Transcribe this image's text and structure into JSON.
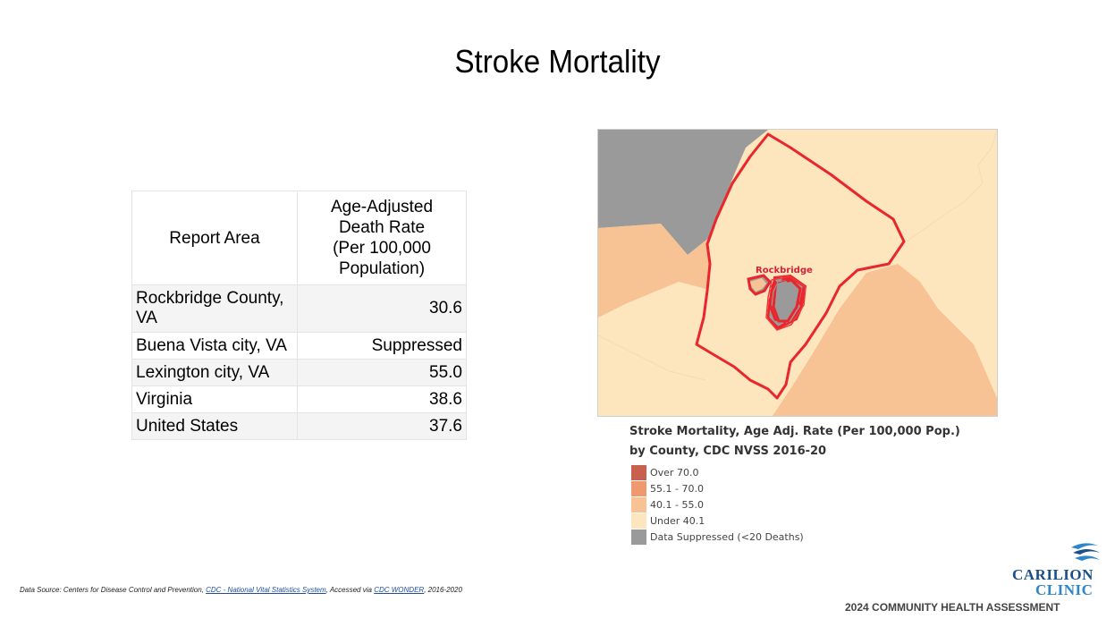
{
  "title": "Stroke Mortality",
  "table": {
    "header_area": "Report Area",
    "header_rate_lines": [
      "Age-Adjusted",
      "Death Rate",
      "(Per 100,000",
      "Population)"
    ],
    "rows": [
      {
        "area_lines": [
          "Rockbridge County,",
          "VA"
        ],
        "rate": "30.6"
      },
      {
        "area": "Buena Vista city, VA",
        "rate": "Suppressed"
      },
      {
        "area": "Lexington city, VA",
        "rate": "55.0"
      },
      {
        "area": "Virginia",
        "rate": "38.6"
      },
      {
        "area": "United States",
        "rate": "37.6"
      }
    ]
  },
  "map": {
    "county_label": "Rockbridge",
    "legend_title_lines": [
      "Stroke Mortality, Age Adj. Rate (Per 100,000 Pop.)",
      "by County, CDC NVSS 2016-20"
    ],
    "legend": [
      {
        "label": "Over 70.0",
        "color": "#c9604e"
      },
      {
        "label": "55.1 - 70.0",
        "color": "#ee9a6e"
      },
      {
        "label": "40.1 - 55.0",
        "color": "#f7c394"
      },
      {
        "label": "Under 40.1",
        "color": "#fde5bd"
      },
      {
        "label": "Data Suppressed (<20 Deaths)",
        "color": "#9a9a9a"
      }
    ],
    "colors": {
      "border": "#e8262c",
      "county_fill": "#fde5bd",
      "neighbor_orange": "#f7c394",
      "suppressed": "#9a9a9a"
    }
  },
  "footer": {
    "source_prefix": "Data Source: Centers for Disease Control and Prevention, ",
    "source_link1": "CDC - National Vital Statistics System",
    "source_mid": ", Accessed via ",
    "source_link2": "CDC WONDER",
    "source_suffix": ", 2016-2020",
    "logo_line1": "CARILION",
    "logo_line2": "CLINIC",
    "report_name": "2024 COMMUNITY HEALTH ASSESSMENT"
  }
}
